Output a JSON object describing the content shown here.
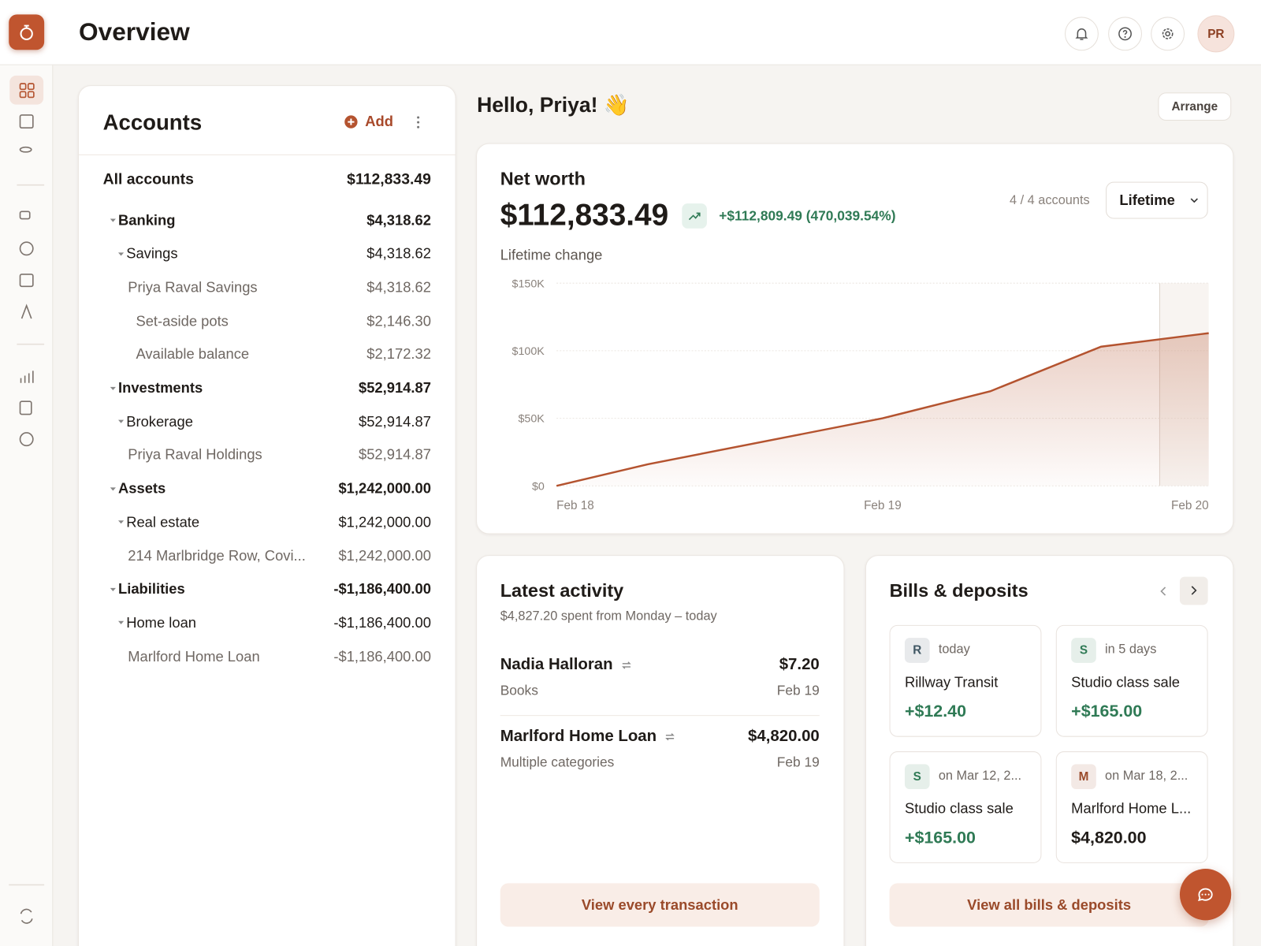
{
  "header": {
    "title": "Overview",
    "avatar": "PR"
  },
  "accounts": {
    "title": "Accounts",
    "add": "Add",
    "total": {
      "name": "All accounts",
      "amount": "$112,833.49"
    },
    "groups": [
      {
        "name": "Banking",
        "amount": "$4,318.62",
        "children": [
          {
            "name": "Savings",
            "amount": "$4,318.62",
            "children": [
              {
                "name": "Priya Raval Savings",
                "amount": "$4,318.62",
                "children": [
                  {
                    "name": "Set-aside pots",
                    "amount": "$2,146.30"
                  },
                  {
                    "name": "Available balance",
                    "amount": "$2,172.32"
                  }
                ]
              }
            ]
          }
        ]
      },
      {
        "name": "Investments",
        "amount": "$52,914.87",
        "children": [
          {
            "name": "Brokerage",
            "amount": "$52,914.87",
            "children": [
              {
                "name": "Priya Raval Holdings",
                "amount": "$52,914.87"
              }
            ]
          }
        ]
      },
      {
        "name": "Assets",
        "amount": "$1,242,000.00",
        "children": [
          {
            "name": "Real estate",
            "amount": "$1,242,000.00",
            "children": [
              {
                "name": "214 Marlbridge Row, Covi...",
                "amount": "$1,242,000.00"
              }
            ]
          }
        ]
      },
      {
        "name": "Liabilities",
        "amount": "-$1,186,400.00",
        "children": [
          {
            "name": "Home loan",
            "amount": "-$1,186,400.00",
            "children": [
              {
                "name": "Marlford Home Loan",
                "amount": "-$1,186,400.00"
              }
            ]
          }
        ]
      }
    ]
  },
  "greeting": "Hello, Priya! 👋",
  "arrange": "Arrange",
  "net_worth": {
    "title": "Net worth",
    "value": "$112,833.49",
    "change": "+$112,809.49 (470,039.54%)",
    "accounts": "4 / 4 accounts",
    "period": "Lifetime",
    "caption": "Lifetime change"
  },
  "chart_data": {
    "type": "line",
    "x": [
      0,
      0.28,
      1,
      1.33,
      1.67,
      2
    ],
    "values": [
      0,
      16000,
      50000,
      70000,
      103000,
      113000
    ],
    "color": "#b4532f",
    "grid": true,
    "xlim": [
      0,
      2
    ],
    "xticks": [
      {
        "value": 0,
        "label": "Feb 18"
      },
      {
        "value": 1,
        "label": "Feb 19"
      },
      {
        "value": 2,
        "label": "Feb 20"
      }
    ],
    "ylim": [
      0,
      150000
    ],
    "yticks": [
      {
        "value": 0,
        "label": "$0"
      },
      {
        "value": 50000,
        "label": "$50K"
      },
      {
        "value": 100000,
        "label": "$100K"
      },
      {
        "value": 150000,
        "label": "$150K"
      }
    ]
  },
  "latest": {
    "title": "Latest activity",
    "subtitle": "$4,827.20 spent from Monday – today",
    "transactions": [
      {
        "name": "Nadia Halloran",
        "category": "Books",
        "amount": "$7.20",
        "date": "Feb 19"
      },
      {
        "name": "Marlford Home Loan",
        "category": "Multiple categories",
        "amount": "$4,820.00",
        "date": "Feb 19"
      }
    ],
    "button": "View every transaction"
  },
  "bills": {
    "title": "Bills & deposits",
    "button": "View all bills & deposits",
    "cards": [
      {
        "initial": "R",
        "when": "today",
        "name": "Rillway Transit",
        "amount": "+$12.40",
        "color": "#3f5663"
      },
      {
        "initial": "S",
        "when": "in 5 days",
        "name": "Studio class sale",
        "amount": "+$165.00",
        "color": "#2f7a55"
      },
      {
        "initial": "S",
        "when": "on Mar 12, 2...",
        "name": "Studio class sale",
        "amount": "+$165.00",
        "color": "#2f7a55"
      },
      {
        "initial": "M",
        "when": "on Mar 18, 2...",
        "name": "Marlford Home L...",
        "amount": "$4,820.00",
        "color": "#9a4a2a"
      }
    ]
  }
}
